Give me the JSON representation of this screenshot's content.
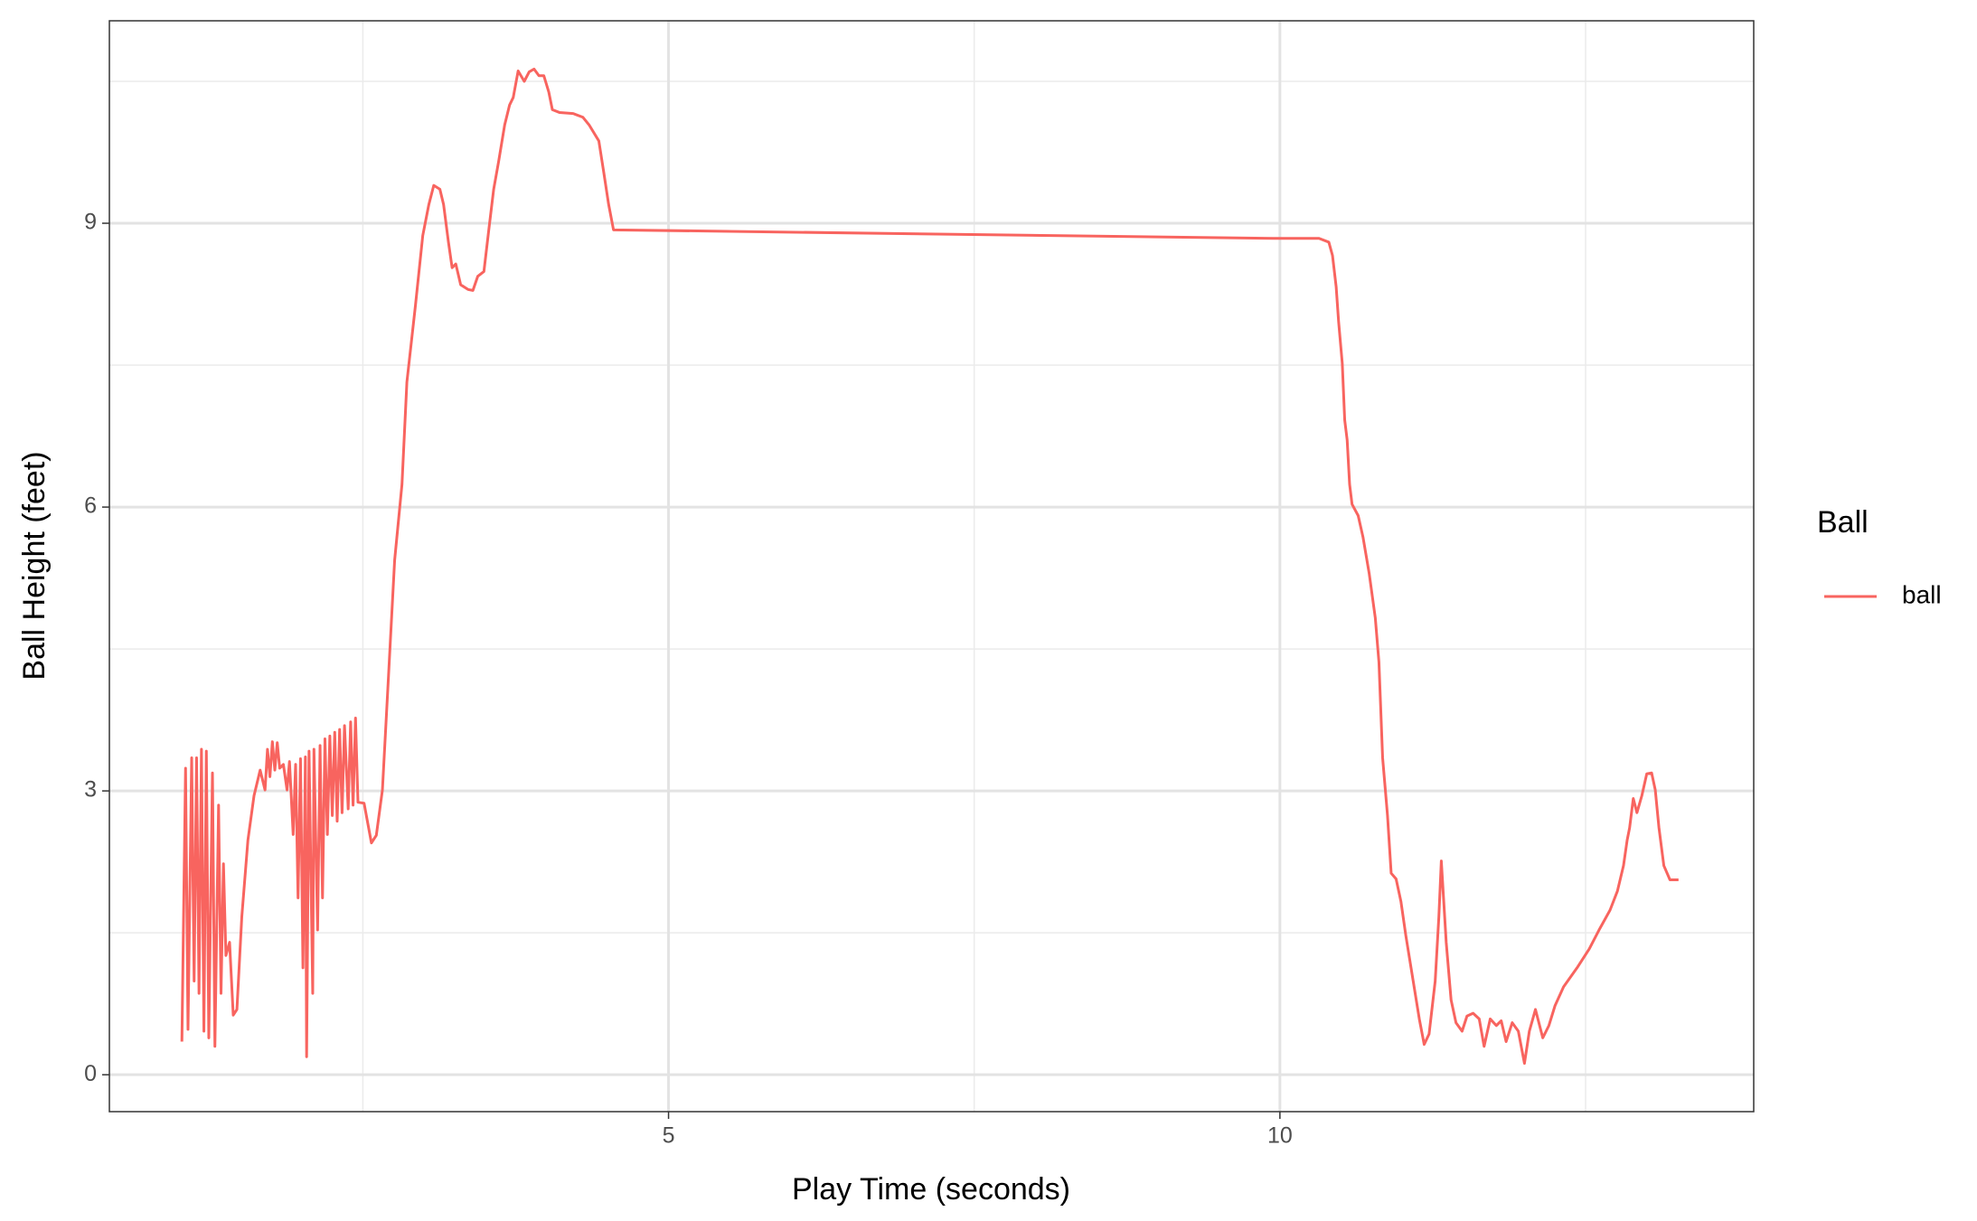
{
  "chart_data": {
    "type": "line",
    "x_label": "Play Time (seconds)",
    "y_label": "Ball Height (feet)",
    "legend_title": "Ball",
    "xlim": [
      0.427,
      13.875
    ],
    "ylim": [
      -0.39,
      11.14
    ],
    "xticks": [
      5,
      10
    ],
    "yticks": [
      0,
      3,
      6,
      9
    ],
    "xminor": [
      2.5,
      7.5,
      12.5
    ],
    "yminor": [
      1.5,
      4.5,
      7.5,
      10.5
    ],
    "grid": true,
    "legend": "right",
    "x": [
      1.02,
      1.05,
      1.07,
      1.1,
      1.12,
      1.14,
      1.16,
      1.18,
      1.2,
      1.22,
      1.24,
      1.27,
      1.29,
      1.32,
      1.34,
      1.36,
      1.38,
      1.41,
      1.44,
      1.47,
      1.51,
      1.56,
      1.61,
      1.66,
      1.7,
      1.72,
      1.74,
      1.76,
      1.78,
      1.8,
      1.82,
      1.85,
      1.88,
      1.9,
      1.93,
      1.95,
      1.97,
      1.99,
      2.01,
      2.03,
      2.04,
      2.06,
      2.09,
      2.1,
      2.13,
      2.15,
      2.17,
      2.19,
      2.21,
      2.23,
      2.25,
      2.27,
      2.29,
      2.31,
      2.33,
      2.35,
      2.38,
      2.4,
      2.42,
      2.44,
      2.46,
      2.51,
      2.57,
      2.61,
      2.66,
      2.71,
      2.76,
      2.82,
      2.86,
      2.93,
      2.99,
      3.04,
      3.08,
      3.13,
      3.16,
      3.2,
      3.23,
      3.26,
      3.3,
      3.36,
      3.4,
      3.44,
      3.49,
      3.53,
      3.57,
      3.61,
      3.66,
      3.7,
      3.73,
      3.77,
      3.82,
      3.86,
      3.9,
      3.94,
      3.98,
      4.02,
      4.05,
      4.11,
      4.22,
      4.3,
      4.35,
      4.43,
      4.47,
      4.51,
      4.55,
      9.95,
      10.32,
      10.4,
      10.43,
      10.46,
      10.48,
      10.51,
      10.53,
      10.55,
      10.57,
      10.59,
      10.64,
      10.68,
      10.73,
      10.78,
      10.81,
      10.84,
      10.88,
      10.91,
      10.95,
      10.99,
      11.03,
      11.09,
      11.14,
      11.18,
      11.22,
      11.27,
      11.3,
      11.32,
      11.36,
      11.4,
      11.44,
      11.49,
      11.53,
      11.58,
      11.63,
      11.67,
      11.72,
      11.77,
      11.81,
      11.85,
      11.9,
      11.95,
      12.0,
      12.04,
      12.09,
      12.15,
      12.2,
      12.25,
      12.32,
      12.43,
      12.53,
      12.61,
      12.7,
      12.76,
      12.81,
      12.84,
      12.86,
      12.89,
      12.92,
      12.96,
      13.0,
      13.04,
      13.07,
      13.1,
      13.14,
      13.19,
      13.26
    ],
    "series": [
      {
        "name": "ball",
        "color": "#f8645f",
        "values": [
          0.35,
          3.24,
          0.48,
          3.35,
          0.99,
          3.35,
          0.86,
          3.44,
          0.46,
          3.42,
          0.39,
          3.19,
          0.3,
          2.85,
          0.86,
          2.23,
          1.26,
          1.4,
          0.63,
          0.69,
          1.67,
          2.48,
          2.95,
          3.22,
          3.01,
          3.44,
          3.15,
          3.52,
          3.22,
          3.51,
          3.24,
          3.28,
          3.01,
          3.31,
          2.54,
          3.28,
          1.87,
          3.34,
          1.13,
          3.36,
          0.19,
          3.42,
          0.86,
          3.44,
          1.53,
          3.48,
          1.87,
          3.55,
          2.54,
          3.58,
          2.74,
          3.62,
          2.68,
          3.65,
          2.77,
          3.69,
          2.81,
          3.73,
          2.85,
          3.77,
          2.88,
          2.87,
          2.45,
          2.53,
          3.01,
          4.22,
          5.44,
          6.24,
          7.32,
          8.13,
          8.87,
          9.2,
          9.4,
          9.36,
          9.2,
          8.8,
          8.53,
          8.57,
          8.35,
          8.3,
          8.29,
          8.44,
          8.49,
          8.93,
          9.36,
          9.65,
          10.04,
          10.25,
          10.33,
          10.61,
          10.5,
          10.6,
          10.63,
          10.56,
          10.56,
          10.39,
          10.2,
          10.17,
          10.16,
          10.12,
          10.04,
          9.87,
          9.54,
          9.2,
          8.93,
          8.84,
          8.84,
          8.8,
          8.66,
          8.33,
          7.96,
          7.52,
          6.92,
          6.71,
          6.24,
          6.03,
          5.91,
          5.68,
          5.3,
          4.83,
          4.36,
          3.35,
          2.74,
          2.13,
          2.07,
          1.83,
          1.47,
          0.99,
          0.59,
          0.32,
          0.43,
          0.99,
          1.67,
          2.26,
          1.4,
          0.79,
          0.55,
          0.46,
          0.62,
          0.65,
          0.59,
          0.3,
          0.59,
          0.52,
          0.57,
          0.35,
          0.55,
          0.46,
          0.12,
          0.46,
          0.69,
          0.39,
          0.52,
          0.73,
          0.93,
          1.13,
          1.33,
          1.53,
          1.74,
          1.94,
          2.21,
          2.48,
          2.61,
          2.92,
          2.77,
          2.95,
          3.18,
          3.19,
          3.01,
          2.61,
          2.21,
          2.06,
          2.06
        ]
      }
    ]
  }
}
